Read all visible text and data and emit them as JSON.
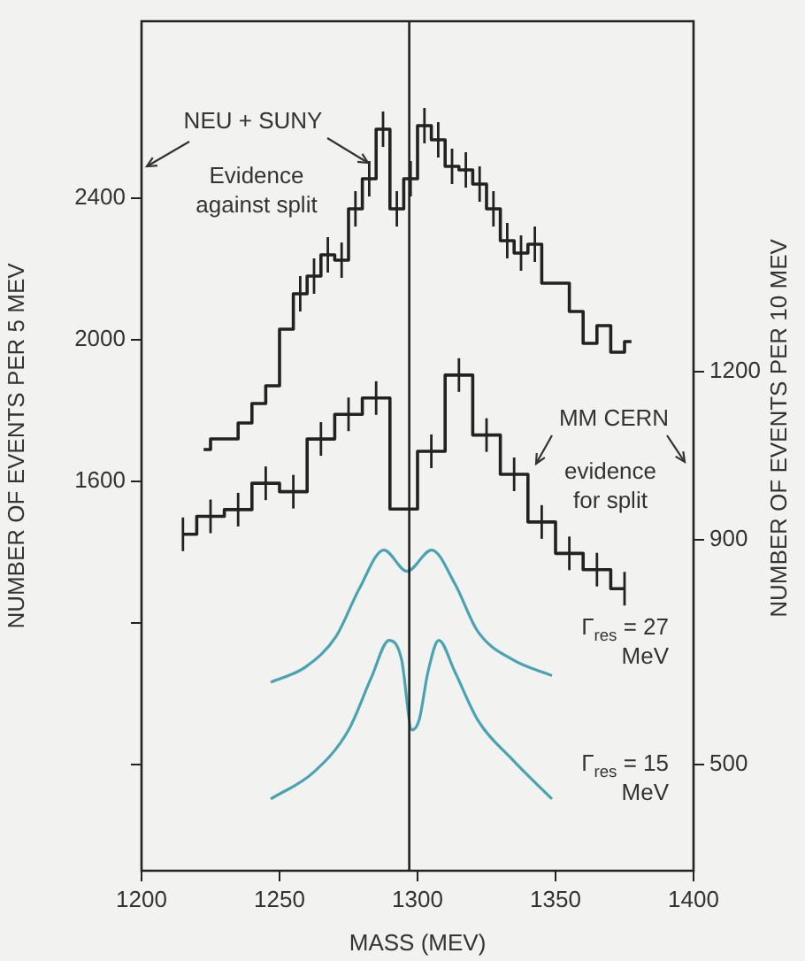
{
  "chart_data": {
    "type": "step",
    "xlabel": "MASS (MEV)",
    "ylabel": "NUMBER OF EVENTS PER 5 MEV",
    "y2label": "NUMBER OF EVENTS PER 10 MEV",
    "xlim": [
      1200,
      1400
    ],
    "xticks": [
      1200,
      1250,
      1300,
      1350,
      1400
    ],
    "ylim": [
      500,
      2900
    ],
    "yticks": [
      {
        "value": 800,
        "label": null
      },
      {
        "value": 1200,
        "label": null
      },
      1600,
      2000,
      2400
    ],
    "y2lim": [
      310,
      1825
    ],
    "y2ticks": [
      500,
      900,
      1200
    ],
    "grid": false,
    "legend": false,
    "marker": "none",
    "line_style": "solid",
    "ref_lines": [
      {
        "axis": "x",
        "value": 1297,
        "color": "#222222"
      }
    ],
    "annotations": [
      "Evidence against split",
      "evidence for split"
    ],
    "series": [
      {
        "name": "NEU + SUNY",
        "color": "#222222",
        "x": [
          1222.5,
          1227.5,
          1232.5,
          1237.5,
          1242.5,
          1247.5,
          1252.5,
          1257.5,
          1262.5,
          1267.5,
          1272.5,
          1277.5,
          1282.5,
          1287.5,
          1292.5,
          1297.5,
          1302.5,
          1307.5,
          1312.5,
          1317.5,
          1322.5,
          1327.5,
          1332.5,
          1337.5,
          1342.5,
          1347.5,
          1352.5,
          1357.5,
          1362.5,
          1367.5,
          1372.5,
          1377.5
        ],
        "values": [
          1690,
          1720,
          1720,
          1765,
          1820,
          1870,
          2030,
          2130,
          2180,
          2240,
          2225,
          2370,
          2455,
          2595,
          2370,
          2455,
          2605,
          2565,
          2490,
          2480,
          2440,
          2370,
          2280,
          2245,
          2270,
          2160,
          2160,
          2080,
          1990,
          2040,
          1965,
          1995
        ],
        "errors": [
          null,
          null,
          null,
          null,
          null,
          null,
          null,
          50,
          50,
          50,
          50,
          50,
          50,
          50,
          50,
          50,
          50,
          50,
          50,
          50,
          50,
          50,
          50,
          50,
          50,
          null,
          null,
          null,
          null,
          null,
          null,
          null
        ]
      },
      {
        "name": "MM CERN",
        "axis": "y2",
        "color": "#222222",
        "x": [
          1215,
          1225,
          1235,
          1245,
          1255,
          1265,
          1275,
          1285,
          1295,
          1305,
          1315,
          1325,
          1335,
          1345,
          1355,
          1365,
          1375
        ],
        "values": [
          910,
          942,
          954,
          1001,
          986,
          1080,
          1124,
          1153,
          955,
          1058,
          1194,
          1087,
          1017,
          932,
          876,
          847,
          813
        ],
        "errors": [
          30,
          30,
          30,
          30,
          30,
          30,
          30,
          30,
          null,
          30,
          30,
          30,
          30,
          30,
          30,
          30,
          30
        ]
      },
      {
        "name": "Γ$_{res}$ = 27 MeV",
        "type": "line",
        "axis": "y2",
        "color": "#4aa3b5",
        "x": [
          1246.8,
          1259.6,
          1270.5,
          1278.9,
          1287.8,
          1296.2,
          1305.1,
          1313.5,
          1321.8,
          1334.6,
          1348.7
        ],
        "values": [
          646,
          674,
          728,
          813,
          882,
          844,
          882,
          822,
          737,
          686,
          658
        ]
      },
      {
        "name": "Γ$_{res}$ = 15 MeV",
        "type": "line",
        "axis": "y2",
        "color": "#4aa3b5",
        "x": [
          1246.8,
          1262.2,
          1275,
          1283.3,
          1289.7,
          1294.2,
          1298,
          1300.6,
          1303.8,
          1307.7,
          1313.5,
          1321.8,
          1334.6,
          1348.7
        ],
        "values": [
          438,
          485,
          561,
          655,
          721,
          687,
          561,
          579,
          665,
          721,
          665,
          579,
          507,
          438
        ]
      }
    ]
  }
}
